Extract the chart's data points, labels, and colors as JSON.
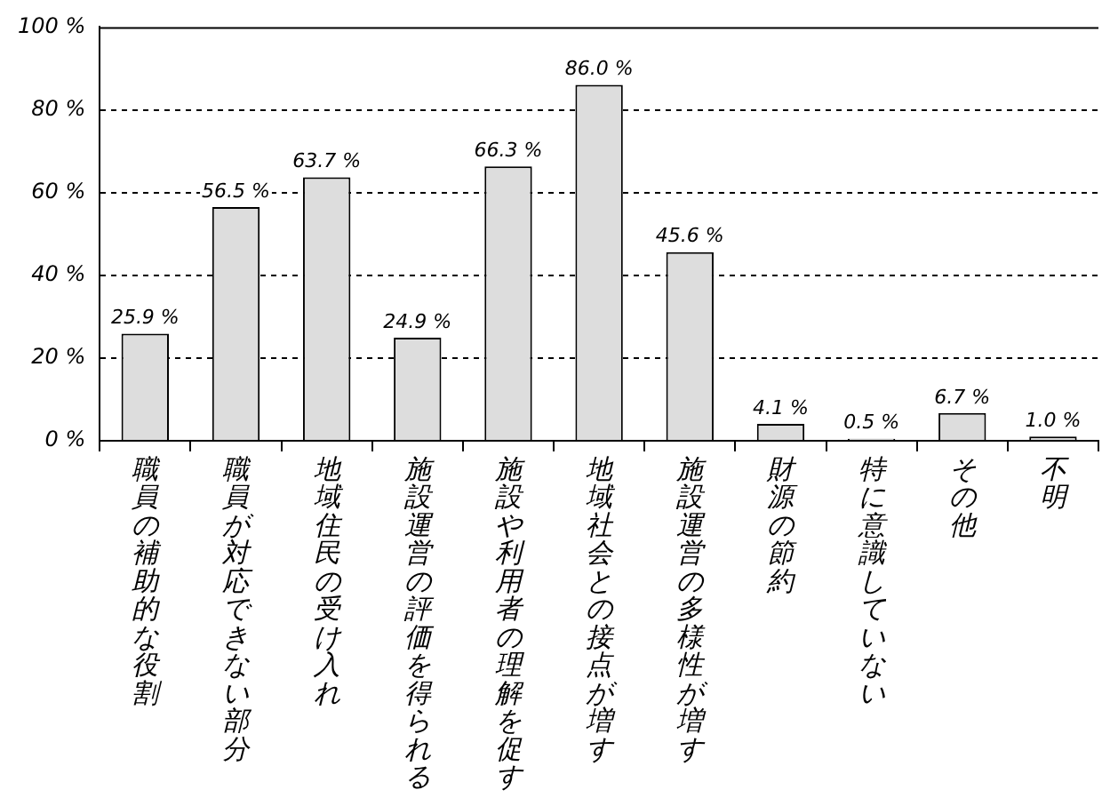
{
  "chart_data": {
    "type": "bar",
    "categories": [
      "職員の補助的な役割",
      "職員が対応できない部分",
      "地域住民の受け入れ",
      "施設運営の評価を得られる",
      "施設や利用者の理解を促す",
      "地域社会との接点が増す",
      "施設運営の多様性が増す",
      "財源の節約",
      "特に意識していない",
      "その他",
      "不明"
    ],
    "values": [
      25.9,
      56.5,
      63.7,
      24.9,
      66.3,
      86.0,
      45.6,
      4.1,
      0.5,
      6.7,
      1.0
    ],
    "value_labels": [
      "25.9 %",
      "56.5 %",
      "63.7 %",
      "24.9 %",
      "66.3 %",
      "86.0 %",
      "45.6 %",
      "4.1 %",
      "0.5 %",
      "6.7 %",
      "1.0 %"
    ],
    "color": "#dddddd",
    "ylim": [
      0,
      100
    ],
    "yticks": [
      {
        "value": 0,
        "label": "0 %"
      },
      {
        "value": 20,
        "label": "20 %"
      },
      {
        "value": 40,
        "label": "40 %"
      },
      {
        "value": 60,
        "label": "60 %"
      },
      {
        "value": 80,
        "label": "80 %"
      },
      {
        "value": 100,
        "label": "100 %"
      }
    ],
    "grid": "y",
    "line_style": "dashed",
    "legend": false
  }
}
